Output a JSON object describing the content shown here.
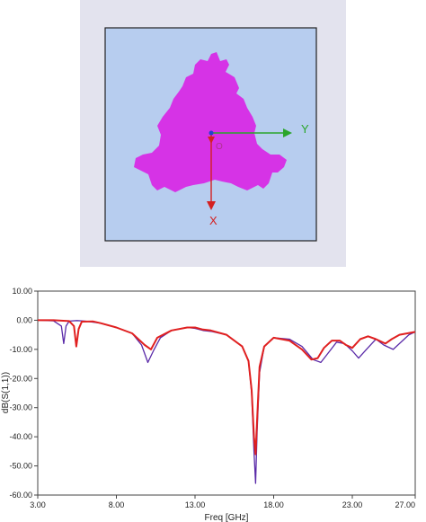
{
  "antenna": {
    "axis_y_label": "Y",
    "axis_x_label": "X",
    "origin_label": "O",
    "colors": {
      "outer_frame": "#e3e3ee",
      "substrate": "#b7cdef",
      "substrate_border": "#222222",
      "patch": "#d633e6",
      "axis_y": "#2aa52a",
      "axis_x": "#d42020",
      "axis_z": "#2040d0"
    }
  },
  "chart_data": {
    "type": "line",
    "xlabel": "Freq [GHz]",
    "ylabel": "dB(S(1,1))",
    "xlim": [
      3,
      27
    ],
    "ylim": [
      -60,
      10
    ],
    "x_ticks": [
      "3.00",
      "8.00",
      "13.00",
      "18.00",
      "23.00",
      "27.00"
    ],
    "x_tick_values": [
      3,
      8,
      13,
      18,
      23,
      27
    ],
    "y_ticks": [
      "10.00",
      "0.00",
      "-10.00",
      "-20.00",
      "-30.00",
      "-40.00",
      "-50.00",
      "-60.00"
    ],
    "y_tick_values": [
      10,
      0,
      -10,
      -20,
      -30,
      -40,
      -50,
      -60
    ],
    "grid": false,
    "series": [
      {
        "color": "#5a2aa8",
        "x": [
          3,
          4,
          4.5,
          4.65,
          4.8,
          5.0,
          5.5,
          6,
          7,
          8,
          9,
          9.6,
          10.0,
          10.4,
          10.8,
          11.5,
          12.5,
          13,
          13.5,
          14,
          15,
          16,
          16.4,
          16.6,
          16.75,
          16.85,
          16.95,
          17.1,
          17.4,
          18,
          19,
          19.8,
          20.5,
          21,
          21.5,
          22,
          22.5,
          23,
          23.4,
          23.9,
          24.5,
          25,
          25.6,
          26.2,
          26.6,
          27
        ],
        "y": [
          0,
          -0.2,
          -2,
          -8,
          -2,
          -0.3,
          -0.1,
          -0.3,
          -1,
          -2.5,
          -4.5,
          -8.5,
          -14.5,
          -10,
          -6,
          -3.5,
          -2.5,
          -2.8,
          -3.5,
          -3.8,
          -5,
          -9,
          -14,
          -25,
          -45,
          -56,
          -38,
          -18,
          -9,
          -6,
          -6.5,
          -9,
          -13.5,
          -14.5,
          -11,
          -7.5,
          -8,
          -10.5,
          -13,
          -10,
          -6.5,
          -8.5,
          -10,
          -7,
          -5,
          -4
        ]
      },
      {
        "color": "#e02020",
        "x": [
          3,
          4,
          5,
          5.3,
          5.45,
          5.6,
          5.8,
          6.5,
          7,
          8,
          9,
          9.8,
          10.2,
          10.6,
          11.5,
          12.5,
          13,
          13.5,
          14,
          15,
          16,
          16.4,
          16.6,
          16.75,
          16.85,
          16.95,
          17.1,
          17.4,
          18,
          19,
          19.8,
          20.4,
          20.8,
          21.2,
          21.7,
          22.2,
          22.6,
          23,
          23.5,
          24,
          24.5,
          25.1,
          25.5,
          26,
          26.5,
          27
        ],
        "y": [
          0,
          0,
          -0.3,
          -2,
          -9,
          -3,
          -0.5,
          -0.4,
          -1,
          -2.5,
          -4.5,
          -8.5,
          -10,
          -6,
          -3.5,
          -2.5,
          -2.5,
          -3.2,
          -3.5,
          -5,
          -9,
          -14,
          -24,
          -40,
          -46,
          -34,
          -16,
          -9,
          -6,
          -7,
          -10,
          -13.5,
          -13,
          -9.5,
          -7,
          -7,
          -8.5,
          -9.5,
          -6.5,
          -5.5,
          -6.5,
          -8,
          -6.5,
          -5,
          -4.5,
          -4
        ]
      }
    ]
  }
}
